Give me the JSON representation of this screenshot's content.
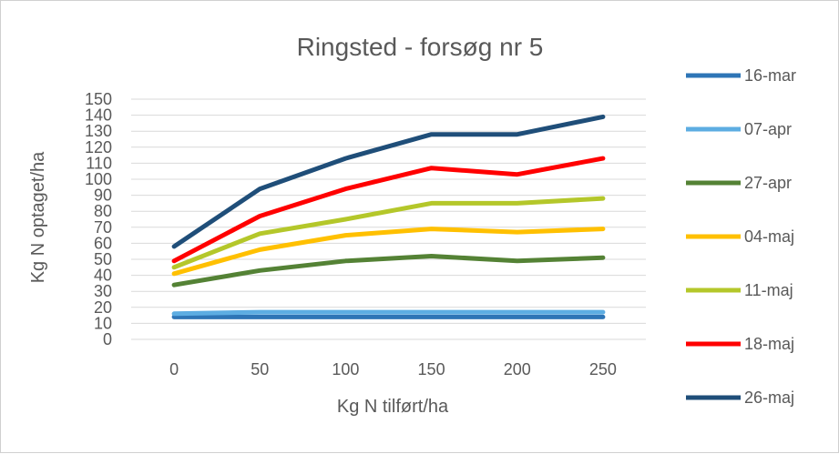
{
  "chart_data": {
    "type": "line",
    "title": "Ringsted - forsøg nr 5",
    "xlabel": "Kg N tilført/ha",
    "ylabel": "Kg N optaget/ha",
    "x": [
      0,
      50,
      100,
      150,
      200,
      250
    ],
    "x_tick_labels": [
      "0",
      "50",
      "100",
      "150",
      "200",
      "250"
    ],
    "ylim": [
      0,
      150
    ],
    "y_ticks": [
      0,
      10,
      20,
      30,
      40,
      50,
      60,
      70,
      80,
      90,
      100,
      110,
      120,
      130,
      140,
      150
    ],
    "y_tick_labels": [
      "0",
      "10",
      "20",
      "30",
      "40",
      "50",
      "60",
      "70",
      "80",
      "90",
      "100",
      "110",
      "120",
      "130",
      "140",
      "150"
    ],
    "grid": true,
    "legend_position": "right",
    "series": [
      {
        "name": "16-mar",
        "color": "#2e75b6",
        "values": [
          14,
          14,
          14,
          14,
          14,
          14
        ]
      },
      {
        "name": "07-apr",
        "color": "#5dade2",
        "values": [
          16,
          17,
          17,
          17,
          17,
          17
        ]
      },
      {
        "name": "27-apr",
        "color": "#548235",
        "values": [
          34,
          43,
          49,
          52,
          49,
          51
        ]
      },
      {
        "name": "04-maj",
        "color": "#ffc000",
        "values": [
          41,
          56,
          65,
          69,
          67,
          69
        ]
      },
      {
        "name": "11-maj",
        "color": "#b4c72a",
        "values": [
          45,
          66,
          75,
          85,
          85,
          88
        ]
      },
      {
        "name": "18-maj",
        "color": "#ff0000",
        "values": [
          49,
          77,
          94,
          107,
          103,
          113
        ]
      },
      {
        "name": "26-maj",
        "color": "#1f4e79",
        "values": [
          58,
          94,
          113,
          128,
          128,
          139
        ]
      }
    ]
  }
}
